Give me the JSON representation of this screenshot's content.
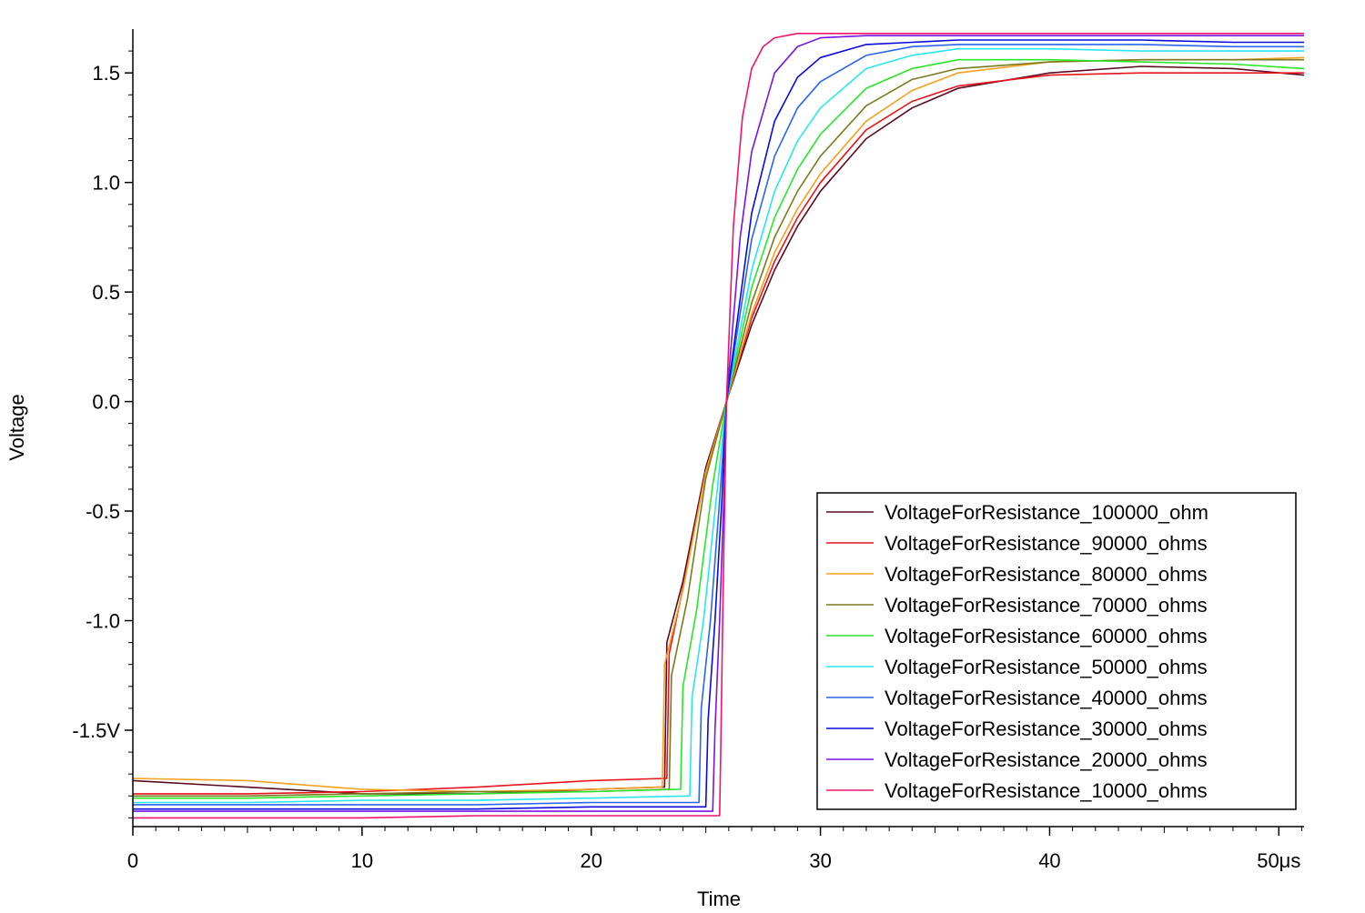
{
  "chart_data": {
    "type": "line",
    "title": "",
    "xlabel": "Time",
    "ylabel": "Voltage",
    "x_unit": "μs",
    "y_unit": "V",
    "xlim": [
      0,
      51.1
    ],
    "ylim": [
      -1.94,
      1.7
    ],
    "xticks": [
      0,
      10,
      20,
      30,
      40,
      50
    ],
    "xtick_labels": [
      "0",
      "10",
      "20",
      "30",
      "40",
      "50μs"
    ],
    "yticks": [
      -1.5,
      -1.0,
      -0.5,
      0.0,
      0.5,
      1.0,
      1.5
    ],
    "ytick_labels": [
      "-1.5V",
      "-1.0",
      "-0.5",
      "0.0",
      "0.5",
      "1.0",
      "1.5"
    ],
    "grid": false,
    "legend_position": "bottom-right",
    "series": [
      {
        "name": "VoltageForResistance_100000_ohm",
        "color": "#5a0a1e",
        "start_y": -1.73,
        "switch_x": 23.2,
        "jump_to": -1.05,
        "time_constant": 4.6,
        "final_y": 1.52,
        "points": [
          [
            0,
            -1.73
          ],
          [
            5,
            -1.76
          ],
          [
            10,
            -1.79
          ],
          [
            15,
            -1.79
          ],
          [
            20,
            -1.77
          ],
          [
            23.0,
            -1.76
          ],
          [
            23.2,
            -1.76
          ],
          [
            23.3,
            -1.1
          ],
          [
            24,
            -0.82
          ],
          [
            25,
            -0.3
          ],
          [
            25.9,
            0.0
          ],
          [
            27,
            0.35
          ],
          [
            28,
            0.6
          ],
          [
            29,
            0.8
          ],
          [
            30,
            0.96
          ],
          [
            32,
            1.2
          ],
          [
            34,
            1.34
          ],
          [
            36,
            1.43
          ],
          [
            40,
            1.5
          ],
          [
            44,
            1.53
          ],
          [
            48,
            1.52
          ],
          [
            51.1,
            1.49
          ]
        ]
      },
      {
        "name": "VoltageForResistance_90000_ohms",
        "color": "#e8141e",
        "start_y": -1.79,
        "switch_x": 23.3,
        "jump_to": -1.15,
        "time_constant": 4.2,
        "final_y": 1.5,
        "points": [
          [
            0,
            -1.79
          ],
          [
            5,
            -1.79
          ],
          [
            10,
            -1.78
          ],
          [
            15,
            -1.76
          ],
          [
            20,
            -1.73
          ],
          [
            23.2,
            -1.72
          ],
          [
            23.3,
            -1.72
          ],
          [
            23.4,
            -1.15
          ],
          [
            24,
            -0.85
          ],
          [
            25,
            -0.32
          ],
          [
            25.9,
            0.0
          ],
          [
            27,
            0.38
          ],
          [
            28,
            0.64
          ],
          [
            29,
            0.84
          ],
          [
            30,
            1.0
          ],
          [
            32,
            1.24
          ],
          [
            34,
            1.37
          ],
          [
            36,
            1.44
          ],
          [
            40,
            1.49
          ],
          [
            44,
            1.5
          ],
          [
            48,
            1.5
          ],
          [
            51.1,
            1.5
          ]
        ]
      },
      {
        "name": "VoltageForResistance_80000_ohms",
        "color": "#f5a01e",
        "start_y": -1.72,
        "switch_x": 23.1,
        "jump_to": -1.2,
        "time_constant": 3.9,
        "final_y": 1.56,
        "points": [
          [
            0,
            -1.72
          ],
          [
            5,
            -1.73
          ],
          [
            10,
            -1.77
          ],
          [
            15,
            -1.78
          ],
          [
            20,
            -1.77
          ],
          [
            23.0,
            -1.76
          ],
          [
            23.1,
            -1.76
          ],
          [
            23.2,
            -1.2
          ],
          [
            24,
            -0.86
          ],
          [
            25,
            -0.32
          ],
          [
            25.9,
            0.0
          ],
          [
            27,
            0.4
          ],
          [
            28,
            0.68
          ],
          [
            29,
            0.88
          ],
          [
            30,
            1.04
          ],
          [
            32,
            1.28
          ],
          [
            34,
            1.42
          ],
          [
            36,
            1.5
          ],
          [
            40,
            1.55
          ],
          [
            44,
            1.56
          ],
          [
            48,
            1.56
          ],
          [
            51.1,
            1.57
          ]
        ]
      },
      {
        "name": "VoltageForResistance_70000_ohms",
        "color": "#7a7a1e",
        "start_y": -1.8,
        "switch_x": 23.4,
        "jump_to": -1.25,
        "time_constant": 3.5,
        "final_y": 1.56,
        "points": [
          [
            0,
            -1.8
          ],
          [
            5,
            -1.8
          ],
          [
            10,
            -1.79
          ],
          [
            15,
            -1.78
          ],
          [
            20,
            -1.78
          ],
          [
            23.3,
            -1.77
          ],
          [
            23.4,
            -1.77
          ],
          [
            23.5,
            -1.25
          ],
          [
            24.2,
            -0.9
          ],
          [
            25,
            -0.35
          ],
          [
            25.9,
            0.0
          ],
          [
            27,
            0.45
          ],
          [
            28,
            0.75
          ],
          [
            29,
            0.96
          ],
          [
            30,
            1.12
          ],
          [
            32,
            1.35
          ],
          [
            34,
            1.47
          ],
          [
            36,
            1.52
          ],
          [
            40,
            1.55
          ],
          [
            44,
            1.56
          ],
          [
            48,
            1.56
          ],
          [
            51.1,
            1.56
          ]
        ]
      },
      {
        "name": "VoltageForResistance_60000_ohms",
        "color": "#28e628",
        "start_y": -1.81,
        "switch_x": 23.9,
        "jump_to": -1.3,
        "time_constant": 3.0,
        "final_y": 1.54,
        "points": [
          [
            0,
            -1.81
          ],
          [
            5,
            -1.81
          ],
          [
            10,
            -1.8
          ],
          [
            15,
            -1.79
          ],
          [
            20,
            -1.78
          ],
          [
            23.8,
            -1.77
          ],
          [
            23.9,
            -1.77
          ],
          [
            24.0,
            -1.3
          ],
          [
            24.6,
            -0.95
          ],
          [
            25.3,
            -0.38
          ],
          [
            25.9,
            0.0
          ],
          [
            27,
            0.52
          ],
          [
            28,
            0.84
          ],
          [
            29,
            1.06
          ],
          [
            30,
            1.22
          ],
          [
            32,
            1.43
          ],
          [
            34,
            1.52
          ],
          [
            36,
            1.56
          ],
          [
            40,
            1.56
          ],
          [
            44,
            1.55
          ],
          [
            48,
            1.54
          ],
          [
            51.1,
            1.52
          ]
        ]
      },
      {
        "name": "VoltageForResistance_50000_ohms",
        "color": "#28e6f0",
        "start_y": -1.83,
        "switch_x": 24.3,
        "jump_to": -1.35,
        "time_constant": 2.6,
        "final_y": 1.6,
        "points": [
          [
            0,
            -1.83
          ],
          [
            5,
            -1.83
          ],
          [
            10,
            -1.82
          ],
          [
            15,
            -1.82
          ],
          [
            20,
            -1.81
          ],
          [
            24.2,
            -1.8
          ],
          [
            24.3,
            -1.8
          ],
          [
            24.4,
            -1.35
          ],
          [
            24.9,
            -1.0
          ],
          [
            25.5,
            -0.4
          ],
          [
            25.9,
            0.0
          ],
          [
            27,
            0.6
          ],
          [
            28,
            0.96
          ],
          [
            29,
            1.19
          ],
          [
            30,
            1.34
          ],
          [
            32,
            1.52
          ],
          [
            34,
            1.58
          ],
          [
            36,
            1.61
          ],
          [
            40,
            1.61
          ],
          [
            44,
            1.6
          ],
          [
            48,
            1.6
          ],
          [
            51.1,
            1.6
          ]
        ]
      },
      {
        "name": "VoltageForResistance_40000_ohms",
        "color": "#2864f0",
        "start_y": -1.84,
        "switch_x": 24.7,
        "jump_to": -1.4,
        "time_constant": 2.1,
        "final_y": 1.62,
        "points": [
          [
            0,
            -1.84
          ],
          [
            5,
            -1.84
          ],
          [
            10,
            -1.84
          ],
          [
            15,
            -1.84
          ],
          [
            20,
            -1.83
          ],
          [
            24.6,
            -1.83
          ],
          [
            24.7,
            -1.83
          ],
          [
            24.8,
            -1.4
          ],
          [
            25.2,
            -1.0
          ],
          [
            25.6,
            -0.45
          ],
          [
            25.9,
            0.0
          ],
          [
            27,
            0.74
          ],
          [
            28,
            1.12
          ],
          [
            29,
            1.34
          ],
          [
            30,
            1.46
          ],
          [
            32,
            1.58
          ],
          [
            34,
            1.62
          ],
          [
            36,
            1.63
          ],
          [
            40,
            1.63
          ],
          [
            44,
            1.63
          ],
          [
            48,
            1.62
          ],
          [
            51.1,
            1.62
          ]
        ]
      },
      {
        "name": "VoltageForResistance_30000_ohms",
        "color": "#0a0adc",
        "start_y": -1.86,
        "switch_x": 25.0,
        "jump_to": -1.45,
        "time_constant": 1.7,
        "final_y": 1.64,
        "points": [
          [
            0,
            -1.86
          ],
          [
            5,
            -1.86
          ],
          [
            10,
            -1.86
          ],
          [
            15,
            -1.86
          ],
          [
            20,
            -1.85
          ],
          [
            24.9,
            -1.85
          ],
          [
            25.0,
            -1.85
          ],
          [
            25.1,
            -1.45
          ],
          [
            25.4,
            -1.0
          ],
          [
            25.7,
            -0.45
          ],
          [
            25.9,
            0.0
          ],
          [
            27,
            0.86
          ],
          [
            28,
            1.28
          ],
          [
            29,
            1.48
          ],
          [
            30,
            1.57
          ],
          [
            32,
            1.63
          ],
          [
            34,
            1.64
          ],
          [
            36,
            1.65
          ],
          [
            40,
            1.65
          ],
          [
            44,
            1.65
          ],
          [
            48,
            1.64
          ],
          [
            51.1,
            1.64
          ]
        ]
      },
      {
        "name": "VoltageForResistance_20000_ohms",
        "color": "#7814e6",
        "start_y": -1.87,
        "switch_x": 25.3,
        "jump_to": -1.5,
        "time_constant": 1.2,
        "final_y": 1.66,
        "points": [
          [
            0,
            -1.87
          ],
          [
            5,
            -1.87
          ],
          [
            10,
            -1.87
          ],
          [
            15,
            -1.87
          ],
          [
            20,
            -1.87
          ],
          [
            25.2,
            -1.87
          ],
          [
            25.3,
            -1.87
          ],
          [
            25.4,
            -1.5
          ],
          [
            25.6,
            -1.0
          ],
          [
            25.8,
            -0.4
          ],
          [
            25.9,
            0.0
          ],
          [
            26.5,
            0.75
          ],
          [
            27,
            1.14
          ],
          [
            28,
            1.5
          ],
          [
            29,
            1.62
          ],
          [
            30,
            1.66
          ],
          [
            32,
            1.67
          ],
          [
            36,
            1.67
          ],
          [
            40,
            1.67
          ],
          [
            44,
            1.67
          ],
          [
            48,
            1.67
          ],
          [
            51.1,
            1.67
          ]
        ]
      },
      {
        "name": "VoltageForResistance_10000_ohms",
        "color": "#f0146e",
        "start_y": -1.9,
        "switch_x": 25.6,
        "jump_to": -1.6,
        "time_constant": 0.6,
        "final_y": 1.68,
        "points": [
          [
            0,
            -1.9
          ],
          [
            5,
            -1.9
          ],
          [
            10,
            -1.9
          ],
          [
            15,
            -1.89
          ],
          [
            20,
            -1.89
          ],
          [
            25.5,
            -1.89
          ],
          [
            25.6,
            -1.89
          ],
          [
            25.65,
            -1.6
          ],
          [
            25.75,
            -0.9
          ],
          [
            25.9,
            0.0
          ],
          [
            26.2,
            0.8
          ],
          [
            26.6,
            1.3
          ],
          [
            27,
            1.52
          ],
          [
            27.5,
            1.62
          ],
          [
            28,
            1.66
          ],
          [
            29,
            1.68
          ],
          [
            30,
            1.68
          ],
          [
            34,
            1.68
          ],
          [
            40,
            1.68
          ],
          [
            44,
            1.68
          ],
          [
            48,
            1.68
          ],
          [
            51.1,
            1.68
          ]
        ]
      }
    ]
  }
}
